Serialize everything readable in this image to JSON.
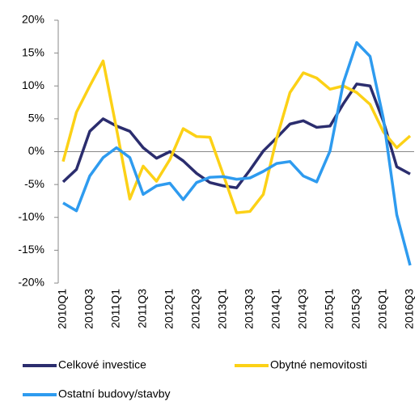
{
  "chart_data": {
    "type": "line",
    "categories": [
      "2010Q1",
      null,
      "2010Q3",
      null,
      "2011Q1",
      null,
      "2011Q3",
      null,
      "2012Q1",
      null,
      "2012Q3",
      null,
      "2013Q1",
      null,
      "2013Q3",
      null,
      "2014Q1",
      null,
      "2014Q3",
      null,
      "2015Q1",
      null,
      "2015Q3",
      null,
      "2016Q1",
      null,
      "2016Q3"
    ],
    "series": [
      {
        "name": "Celkové investice",
        "color": "#2b2d6e",
        "values": [
          -4.6,
          -2.7,
          3.1,
          5.0,
          3.9,
          3.1,
          0.6,
          -1.0,
          0.0,
          -1.4,
          -3.3,
          -4.7,
          -5.2,
          -5.5,
          -2.8,
          0.1,
          2.1,
          4.2,
          4.7,
          3.7,
          3.9,
          7.3,
          10.3,
          10.0,
          4.6,
          -2.3,
          -3.4
        ]
      },
      {
        "name": "Obytné nemovitosti",
        "color": "#fcd116",
        "values": [
          -1.5,
          6.0,
          10.0,
          13.8,
          3.5,
          -7.2,
          -2.2,
          -4.5,
          -1.2,
          3.5,
          2.3,
          2.2,
          -3.5,
          -9.3,
          -9.1,
          -6.5,
          2.0,
          9.0,
          12.0,
          11.2,
          9.5,
          10.0,
          9.0,
          7.2,
          3.0,
          0.6,
          2.4
        ]
      },
      {
        "name": "Ostatní budovy/stavby",
        "color": "#2e9bef",
        "values": [
          -7.8,
          -9.0,
          -3.7,
          -0.9,
          0.6,
          -0.9,
          -6.5,
          -5.2,
          -4.8,
          -7.3,
          -4.7,
          -3.9,
          -3.8,
          -4.2,
          -4.0,
          -3.0,
          -1.8,
          -1.5,
          -3.7,
          -4.6,
          0.1,
          10.5,
          16.6,
          14.5,
          5.0,
          -9.6,
          -17.3
        ]
      }
    ],
    "ylim": [
      -20,
      20
    ],
    "yticks": [
      {
        "value": -20,
        "label": "-20%"
      },
      {
        "value": -15,
        "label": "-15%"
      },
      {
        "value": -10,
        "label": "-10%"
      },
      {
        "value": -5,
        "label": "-5%"
      },
      {
        "value": 0,
        "label": "0%"
      },
      {
        "value": 5,
        "label": "5%"
      },
      {
        "value": 10,
        "label": "10%"
      },
      {
        "value": 15,
        "label": "15%"
      },
      {
        "value": 20,
        "label": "20%"
      }
    ]
  }
}
